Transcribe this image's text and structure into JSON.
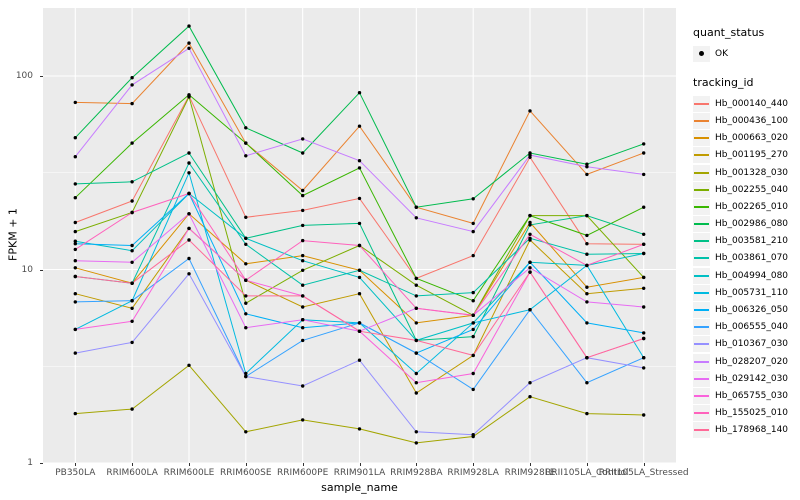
{
  "style": {
    "panel_bg": "#EBEBEB",
    "grid_color": "#FFFFFF",
    "legend_key_bg": "#F2F2F2",
    "point_color": "#000000",
    "tick_label_color": "#4D4D4D"
  },
  "axes": {
    "y_title": "FPKM + 1",
    "x_title": "sample_name",
    "y_ticks": [
      1,
      10,
      100
    ]
  },
  "legend_quant": {
    "title": "quant_status",
    "entries": [
      {
        "label": "OK",
        "type": "point"
      }
    ]
  },
  "legend_tracking": {
    "title": "tracking_id"
  },
  "chart_data": {
    "type": "line",
    "title": "",
    "xlabel": "sample_name",
    "ylabel": "FPKM + 1",
    "y_scale": "log10",
    "ylim": [
      1,
      224
    ],
    "grid": true,
    "legend_position": "right",
    "point_shape": "filled-black-dot",
    "categories": [
      "PB350LA",
      "RRIM600LA",
      "RRIM600LE",
      "RRIM600SE",
      "RRIM600PE",
      "RRIM901LA",
      "RRIM928BA",
      "RRIM928LA",
      "RRIM928LE",
      "RRII105LA_Control",
      "RRII105LA_Stressed"
    ],
    "series": [
      {
        "name": "Hb_000140_440",
        "color": "#F8766D",
        "values": [
          17.5,
          22.6,
          79,
          18.6,
          20.2,
          23.3,
          9.0,
          11.8,
          38,
          13.6,
          13.5
        ]
      },
      {
        "name": "Hb_000436_100",
        "color": "#EA8331",
        "values": [
          73,
          72,
          148,
          45,
          25.6,
          55,
          21,
          17.3,
          66,
          31,
          40
        ]
      },
      {
        "name": "Hb_000663_020",
        "color": "#D89000",
        "values": [
          10.2,
          8.5,
          19.4,
          10.7,
          11.8,
          9.9,
          5.3,
          5.8,
          17.5,
          8.1,
          9.1
        ]
      },
      {
        "name": "Hb_001195_270",
        "color": "#C09B00",
        "values": [
          7.5,
          6.3,
          16.3,
          8.8,
          6.4,
          7.5,
          2.3,
          3.6,
          14.2,
          7.5,
          8.0
        ]
      },
      {
        "name": "Hb_001328_030",
        "color": "#A3A500",
        "values": [
          1.8,
          1.9,
          3.2,
          1.45,
          1.67,
          1.5,
          1.27,
          1.37,
          2.2,
          1.8,
          1.77
        ]
      },
      {
        "name": "Hb_002255_040",
        "color": "#7CAE00",
        "values": [
          15.7,
          19.7,
          78,
          6.7,
          9.9,
          13.3,
          8.3,
          5.8,
          19,
          19,
          9.1
        ]
      },
      {
        "name": "Hb_002265_010",
        "color": "#39B600",
        "values": [
          23.5,
          45,
          80,
          45,
          24.1,
          33.5,
          9.0,
          6.9,
          19,
          15,
          21
        ]
      },
      {
        "name": "Hb_002986_080",
        "color": "#00BB4E",
        "values": [
          48,
          98,
          181,
          54,
          40,
          82,
          21,
          23.2,
          40,
          35,
          44.6
        ]
      },
      {
        "name": "Hb_003581_210",
        "color": "#00C087",
        "values": [
          27.7,
          28.4,
          40,
          14.5,
          16.9,
          17.3,
          4.3,
          4.5,
          17,
          19,
          15.2
        ]
      },
      {
        "name": "Hb_003861_070",
        "color": "#00C1A9",
        "values": [
          9.2,
          8.5,
          35.5,
          13.5,
          8.3,
          9.9,
          7.3,
          7.6,
          14.5,
          12,
          12.1
        ]
      },
      {
        "name": "Hb_004994_080",
        "color": "#00BFC4",
        "values": [
          14.0,
          12.5,
          24.7,
          14.5,
          11.1,
          9.1,
          4.3,
          5.3,
          10.9,
          10.5,
          12.1
        ]
      },
      {
        "name": "Hb_005731_110",
        "color": "#00BAE0",
        "values": [
          4.9,
          6.9,
          31.6,
          2.9,
          5.5,
          5.3,
          2.9,
          5.3,
          6.2,
          10.5,
          3.5
        ]
      },
      {
        "name": "Hb_006326_050",
        "color": "#00B0F6",
        "values": [
          13.6,
          13.3,
          24.7,
          5.9,
          5.0,
          5.3,
          3.7,
          4.9,
          10.9,
          5.3,
          4.7
        ]
      },
      {
        "name": "Hb_006555_040",
        "color": "#35A2FF",
        "values": [
          6.8,
          6.9,
          11.4,
          2.8,
          4.3,
          5.3,
          3.7,
          2.4,
          6.2,
          2.6,
          3.5
        ]
      },
      {
        "name": "Hb_010367_030",
        "color": "#9590FF",
        "values": [
          3.7,
          4.2,
          9.5,
          2.8,
          2.5,
          3.4,
          1.45,
          1.4,
          2.6,
          3.5,
          3.1
        ]
      },
      {
        "name": "Hb_028207_020",
        "color": "#C77CFF",
        "values": [
          38.3,
          90,
          139,
          38.7,
          47.3,
          36.5,
          18.5,
          15.7,
          39,
          34,
          31
        ]
      },
      {
        "name": "Hb_029142_030",
        "color": "#E76BF3",
        "values": [
          11.1,
          10.9,
          19.4,
          5.0,
          5.5,
          4.8,
          6.3,
          5.8,
          10.2,
          6.8,
          6.4
        ]
      },
      {
        "name": "Hb_065755_030",
        "color": "#FA62DB",
        "values": [
          4.9,
          5.4,
          16.3,
          8.8,
          7.3,
          4.8,
          2.6,
          2.9,
          9.7,
          3.5,
          4.4
        ]
      },
      {
        "name": "Hb_155025_010",
        "color": "#FF62BC",
        "values": [
          12.7,
          19.7,
          24.7,
          8.8,
          14.1,
          13.3,
          6.3,
          5.8,
          15.2,
          10.5,
          13.5
        ]
      },
      {
        "name": "Hb_178968_140",
        "color": "#FF6A98",
        "values": [
          9.2,
          8.5,
          14.2,
          7.3,
          7.3,
          4.8,
          4.3,
          3.6,
          9.7,
          3.5,
          4.4
        ]
      }
    ]
  }
}
